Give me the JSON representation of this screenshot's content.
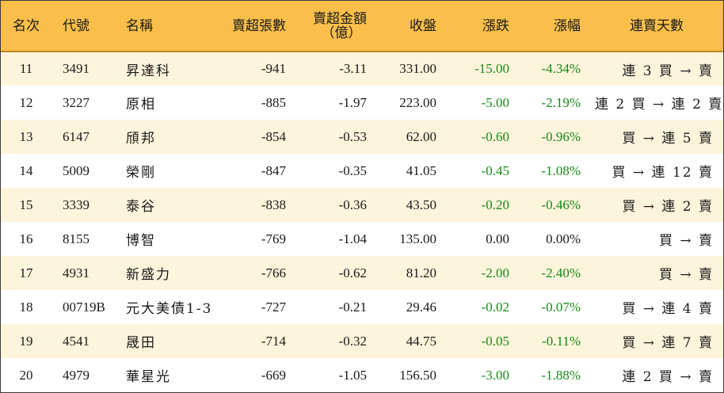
{
  "headers": {
    "rank": "名次",
    "code": "代號",
    "name": "名稱",
    "sell_lots": "賣超張數",
    "sell_amount_line1": "賣超金額",
    "sell_amount_line2": "（億）",
    "close": "收盤",
    "change": "漲跌",
    "change_pct": "漲幅",
    "streak": "連賣天數"
  },
  "colors": {
    "header_bg": "#f9bf4a",
    "odd_row_bg": "#fdf4dc",
    "even_row_bg": "#ffffff",
    "negative_text": "#168a16"
  },
  "rows": [
    {
      "rank": "11",
      "code": "3491",
      "name": "昇達科",
      "sell_lots": "-941",
      "sell_amount": "-3.11",
      "close": "331.00",
      "change": "-15.00",
      "change_pct": "-4.34%",
      "streak": "連 3 買 → 賣"
    },
    {
      "rank": "12",
      "code": "3227",
      "name": "原相",
      "sell_lots": "-885",
      "sell_amount": "-1.97",
      "close": "223.00",
      "change": "-5.00",
      "change_pct": "-2.19%",
      "streak": "連 2 買 → 連 2 賣"
    },
    {
      "rank": "13",
      "code": "6147",
      "name": "頎邦",
      "sell_lots": "-854",
      "sell_amount": "-0.53",
      "close": "62.00",
      "change": "-0.60",
      "change_pct": "-0.96%",
      "streak": "買 → 連 5 賣"
    },
    {
      "rank": "14",
      "code": "5009",
      "name": "榮剛",
      "sell_lots": "-847",
      "sell_amount": "-0.35",
      "close": "41.05",
      "change": "-0.45",
      "change_pct": "-1.08%",
      "streak": "買 → 連 12 賣"
    },
    {
      "rank": "15",
      "code": "3339",
      "name": "泰谷",
      "sell_lots": "-838",
      "sell_amount": "-0.36",
      "close": "43.50",
      "change": "-0.20",
      "change_pct": "-0.46%",
      "streak": "買 → 連 2 賣"
    },
    {
      "rank": "16",
      "code": "8155",
      "name": "博智",
      "sell_lots": "-769",
      "sell_amount": "-1.04",
      "close": "135.00",
      "change": "0.00",
      "change_pct": "0.00%",
      "streak": "買 → 賣"
    },
    {
      "rank": "17",
      "code": "4931",
      "name": "新盛力",
      "sell_lots": "-766",
      "sell_amount": "-0.62",
      "close": "81.20",
      "change": "-2.00",
      "change_pct": "-2.40%",
      "streak": "買 → 賣"
    },
    {
      "rank": "18",
      "code": "00719B",
      "name": "元大美債1-3",
      "sell_lots": "-727",
      "sell_amount": "-0.21",
      "close": "29.46",
      "change": "-0.02",
      "change_pct": "-0.07%",
      "streak": "買 → 連 4 賣"
    },
    {
      "rank": "19",
      "code": "4541",
      "name": "晟田",
      "sell_lots": "-714",
      "sell_amount": "-0.32",
      "close": "44.75",
      "change": "-0.05",
      "change_pct": "-0.11%",
      "streak": "買 → 連 7 賣"
    },
    {
      "rank": "20",
      "code": "4979",
      "name": "華星光",
      "sell_lots": "-669",
      "sell_amount": "-1.05",
      "close": "156.50",
      "change": "-3.00",
      "change_pct": "-1.88%",
      "streak": "連 2 買 → 賣"
    }
  ]
}
